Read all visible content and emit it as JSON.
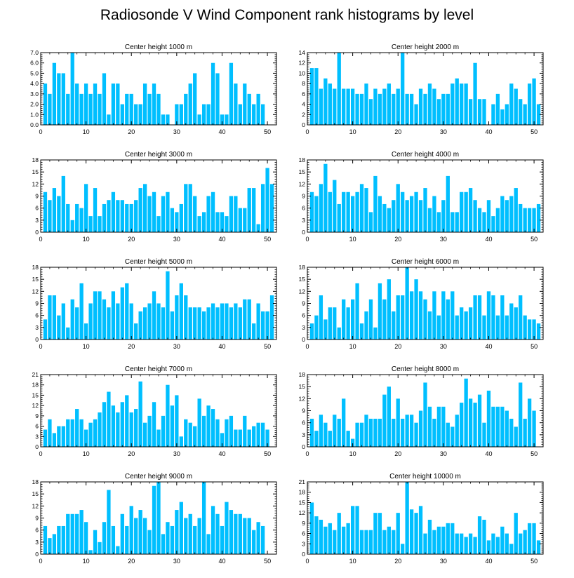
{
  "title": "Radiosonde V Wind Component rank histograms by level",
  "colors": {
    "bar": "#00bfff",
    "axis": "#000000"
  },
  "chart_data": [
    {
      "type": "bar",
      "title": "Center height 1000 m",
      "xlim": [
        0,
        52
      ],
      "ylim": [
        0,
        7
      ],
      "xticks": [
        0,
        10,
        20,
        30,
        40,
        50
      ],
      "yticks": [
        0,
        1,
        2,
        3,
        4,
        5,
        6,
        7
      ],
      "yticklabels": [
        "0.0",
        "1.0",
        "2.0",
        "3.0",
        "4.0",
        "5.0",
        "6.0",
        "7.0"
      ],
      "values": [
        4,
        3,
        6,
        5,
        5,
        3,
        7,
        4,
        3,
        4,
        3,
        4,
        3,
        5,
        1,
        4,
        4,
        2,
        3,
        3,
        2,
        2,
        4,
        3,
        4,
        3,
        1,
        1,
        0,
        2,
        2,
        3,
        4,
        5,
        1,
        2,
        2,
        6,
        5,
        1,
        1,
        6,
        4,
        2,
        4,
        3,
        2,
        3,
        2
      ]
    },
    {
      "type": "bar",
      "title": "Center height 2000 m",
      "xlim": [
        0,
        52
      ],
      "ylim": [
        0,
        14
      ],
      "xticks": [
        0,
        10,
        20,
        30,
        40,
        50
      ],
      "yticks": [
        0,
        2,
        4,
        6,
        8,
        10,
        12,
        14
      ],
      "yticklabels": [
        "0",
        "2",
        "4",
        "6",
        "8",
        "10",
        "12",
        "14"
      ],
      "values": [
        11,
        11,
        7,
        9,
        8,
        7,
        14,
        7,
        7,
        7,
        6,
        6,
        8,
        5,
        7,
        6,
        7,
        8,
        6,
        7,
        14,
        6,
        6,
        4,
        7,
        6,
        8,
        7,
        5,
        6,
        6,
        8,
        9,
        8,
        8,
        5,
        12,
        5,
        5,
        0,
        4,
        6,
        3,
        4,
        8,
        7,
        5,
        4,
        8,
        9,
        4
      ]
    },
    {
      "type": "bar",
      "title": "Center height 3000 m",
      "xlim": [
        0,
        52
      ],
      "ylim": [
        0,
        18
      ],
      "xticks": [
        0,
        10,
        20,
        30,
        40,
        50
      ],
      "yticks": [
        0,
        3,
        6,
        9,
        12,
        15,
        18
      ],
      "yticklabels": [
        "0",
        "3",
        "6",
        "9",
        "12",
        "15",
        "18"
      ],
      "values": [
        10,
        8,
        11,
        9,
        14,
        7,
        3,
        7,
        6,
        12,
        4,
        11,
        4,
        7,
        8,
        10,
        8,
        8,
        7,
        7,
        8,
        11,
        12,
        9,
        10,
        4,
        9,
        10,
        6,
        5,
        7,
        12,
        12,
        9,
        4,
        5,
        9,
        10,
        5,
        5,
        4,
        9,
        9,
        6,
        6,
        11,
        11,
        2,
        12,
        16,
        12
      ]
    },
    {
      "type": "bar",
      "title": "Center height 4000 m",
      "xlim": [
        0,
        52
      ],
      "ylim": [
        0,
        18
      ],
      "xticks": [
        0,
        10,
        20,
        30,
        40,
        50
      ],
      "yticks": [
        0,
        3,
        6,
        9,
        12,
        15,
        18
      ],
      "yticklabels": [
        "0",
        "3",
        "6",
        "9",
        "12",
        "15",
        "18"
      ],
      "values": [
        10,
        9,
        12,
        17,
        10,
        13,
        7,
        10,
        10,
        9,
        10,
        12,
        11,
        5,
        14,
        9,
        7,
        6,
        8,
        12,
        10,
        8,
        9,
        10,
        8,
        11,
        6,
        9,
        5,
        8,
        14,
        5,
        5,
        10,
        10,
        11,
        8,
        6,
        5,
        8,
        4,
        6,
        9,
        8,
        9,
        11,
        7,
        6,
        6,
        6,
        7
      ]
    },
    {
      "type": "bar",
      "title": "Center height 5000 m",
      "xlim": [
        0,
        52
      ],
      "ylim": [
        0,
        18
      ],
      "xticks": [
        0,
        10,
        20,
        30,
        40,
        50
      ],
      "yticks": [
        0,
        3,
        6,
        9,
        12,
        15,
        18
      ],
      "yticklabels": [
        "0",
        "3",
        "6",
        "9",
        "12",
        "15",
        "18"
      ],
      "values": [
        5,
        11,
        11,
        6,
        9,
        3,
        10,
        8,
        14,
        4,
        9,
        12,
        12,
        10,
        8,
        12,
        9,
        13,
        14,
        9,
        4,
        7,
        8,
        9,
        12,
        9,
        8,
        17,
        7,
        11,
        14,
        11,
        8,
        8,
        8,
        7,
        8,
        9,
        8,
        9,
        9,
        8,
        9,
        8,
        10,
        10,
        4,
        9,
        7,
        7,
        11
      ]
    },
    {
      "type": "bar",
      "title": "Center height 6000 m",
      "xlim": [
        0,
        52
      ],
      "ylim": [
        0,
        18
      ],
      "xticks": [
        0,
        10,
        20,
        30,
        40,
        50
      ],
      "yticks": [
        0,
        3,
        6,
        9,
        12,
        15,
        18
      ],
      "yticklabels": [
        "0",
        "3",
        "6",
        "9",
        "12",
        "15",
        "18"
      ],
      "values": [
        4,
        6,
        11,
        5,
        8,
        8,
        3,
        10,
        8,
        10,
        14,
        4,
        7,
        10,
        3,
        14,
        10,
        15,
        7,
        11,
        11,
        18,
        12,
        15,
        12,
        10,
        7,
        12,
        6,
        12,
        10,
        12,
        6,
        8,
        7,
        8,
        11,
        11,
        6,
        12,
        11,
        6,
        11,
        6,
        9,
        8,
        11,
        6,
        5,
        5,
        4
      ]
    },
    {
      "type": "bar",
      "title": "Center height 7000 m",
      "xlim": [
        0,
        52
      ],
      "ylim": [
        0,
        21
      ],
      "xticks": [
        0,
        10,
        20,
        30,
        40,
        50
      ],
      "yticks": [
        0,
        3,
        6,
        9,
        12,
        15,
        18,
        21
      ],
      "yticklabels": [
        "0",
        "3",
        "6",
        "9",
        "12",
        "15",
        "18",
        "21"
      ],
      "values": [
        5,
        8,
        4,
        6,
        6,
        8,
        8,
        11,
        8,
        5,
        7,
        8,
        10,
        13,
        16,
        12,
        10,
        13,
        15,
        10,
        11,
        19,
        7,
        9,
        13,
        5,
        9,
        18,
        12,
        15,
        3,
        8,
        7,
        6,
        14,
        9,
        12,
        11,
        8,
        4,
        8,
        9,
        5,
        5,
        9,
        5,
        6,
        7,
        7,
        5
      ]
    },
    {
      "type": "bar",
      "title": "Center height 8000 m",
      "xlim": [
        0,
        52
      ],
      "ylim": [
        0,
        18
      ],
      "xticks": [
        0,
        10,
        20,
        30,
        40,
        50
      ],
      "yticks": [
        0,
        3,
        6,
        9,
        12,
        15,
        18
      ],
      "yticklabels": [
        "0",
        "3",
        "6",
        "9",
        "12",
        "15",
        "18"
      ],
      "values": [
        7,
        4,
        8,
        6,
        4,
        8,
        7,
        12,
        4,
        2,
        6,
        6,
        8,
        7,
        7,
        7,
        13,
        15,
        7,
        12,
        7,
        8,
        8,
        6,
        9,
        16,
        10,
        7,
        10,
        10,
        6,
        5,
        8,
        11,
        17,
        12,
        11,
        13,
        6,
        14,
        10,
        10,
        10,
        9,
        7,
        5,
        16,
        7,
        12,
        9
      ]
    },
    {
      "type": "bar",
      "title": "Center height 9000 m",
      "xlim": [
        0,
        52
      ],
      "ylim": [
        0,
        18
      ],
      "xticks": [
        0,
        10,
        20,
        30,
        40,
        50
      ],
      "yticks": [
        0,
        3,
        6,
        9,
        12,
        15,
        18
      ],
      "yticklabels": [
        "0",
        "3",
        "6",
        "9",
        "12",
        "15",
        "18"
      ],
      "values": [
        7,
        4,
        5,
        7,
        7,
        10,
        10,
        10,
        11,
        8,
        1,
        6,
        3,
        8,
        16,
        7,
        2,
        10,
        7,
        12,
        9,
        11,
        9,
        6,
        17,
        18,
        5,
        8,
        7,
        11,
        13,
        9,
        10,
        7,
        9,
        18,
        5,
        12,
        10,
        7,
        13,
        11,
        10,
        10,
        9,
        9,
        6,
        8,
        7
      ]
    },
    {
      "type": "bar",
      "title": "Center height 10000 m",
      "xlim": [
        0,
        52
      ],
      "ylim": [
        0,
        21
      ],
      "xticks": [
        0,
        10,
        20,
        30,
        40,
        50
      ],
      "yticks": [
        0,
        3,
        6,
        9,
        12,
        15,
        18,
        21
      ],
      "yticklabels": [
        "0",
        "3",
        "6",
        "9",
        "12",
        "15",
        "18",
        "21"
      ],
      "values": [
        15,
        11,
        10,
        8,
        9,
        7,
        12,
        8,
        9,
        14,
        14,
        7,
        7,
        7,
        12,
        12,
        7,
        8,
        7,
        12,
        3,
        21,
        13,
        12,
        14,
        6,
        10,
        7,
        8,
        8,
        9,
        9,
        6,
        6,
        5,
        6,
        5,
        11,
        10,
        4,
        6,
        5,
        8,
        6,
        3,
        12,
        6,
        7,
        9,
        9,
        4
      ]
    }
  ]
}
